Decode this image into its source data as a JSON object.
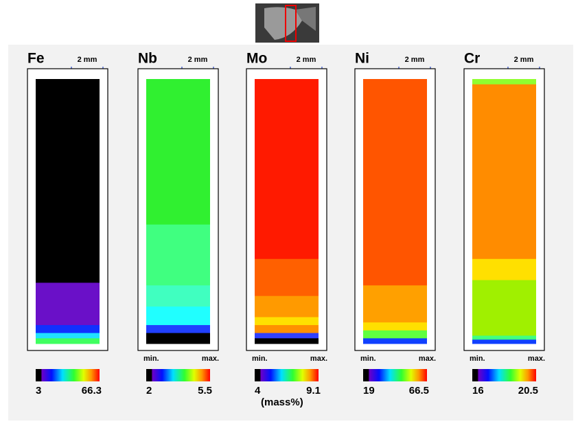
{
  "panels": [
    {
      "element": "Fe",
      "scale": "2 mm",
      "min": 3,
      "max": 66.3
    },
    {
      "element": "Nb",
      "scale": "2 mm",
      "min_label": "min.",
      "max_label": "max.",
      "min": 2,
      "max": 5.5
    },
    {
      "element": "Mo",
      "scale": "2 mm",
      "min_label": "min.",
      "max_label": "max.",
      "min": 4,
      "max": 9.1
    },
    {
      "element": "Ni",
      "scale": "2 mm",
      "min_label": "min.",
      "max_label": "max.",
      "min": 19,
      "max": 66.5
    },
    {
      "element": "Cr",
      "scale": "2 mm",
      "min_label": "min.",
      "max_label": "max.",
      "min": 16,
      "max": 20.5
    }
  ],
  "unit": "(mass%)"
}
